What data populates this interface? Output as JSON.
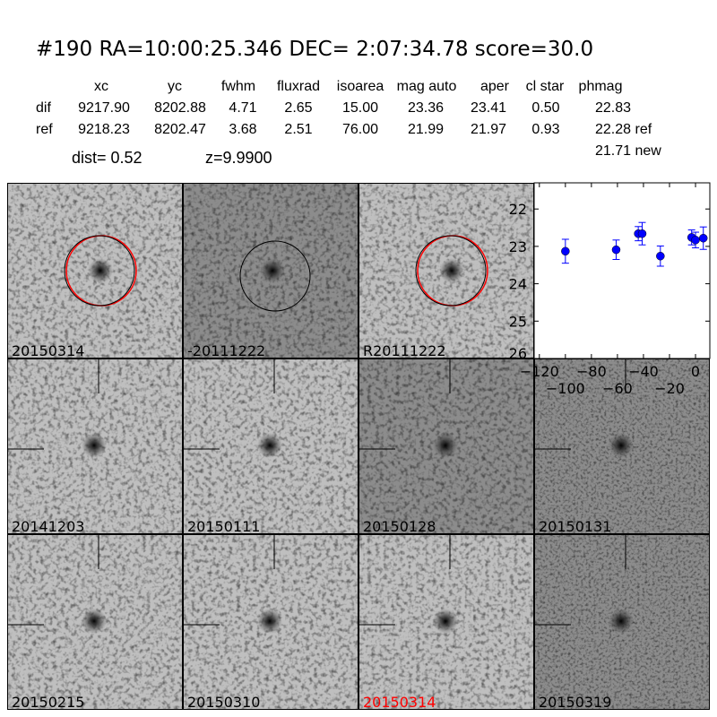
{
  "title": "#190   RA=10:00:25.346 DEC= 2:07:34.78      score=30.0",
  "table": {
    "columns": [
      "xc",
      "yc",
      "fwhm",
      "fluxrad",
      "isoarea",
      "mag auto",
      "aper",
      "cl star",
      "phmag"
    ],
    "rows": [
      {
        "label": "dif",
        "values": [
          "9217.90",
          "8202.88",
          "4.71",
          "2.65",
          "15.00",
          "23.36",
          "23.41",
          "0.50",
          "22.83"
        ]
      },
      {
        "label": "ref",
        "values": [
          "9218.23",
          "8202.47",
          "3.68",
          "2.51",
          "76.00",
          "21.99",
          "21.97",
          "0.93",
          "22.28 ref"
        ]
      }
    ],
    "extra_phmag": "21.71 new",
    "dist": "dist=  0.52",
    "z": "z=9.9900"
  },
  "panels": [
    {
      "label": "20150314",
      "label_color": "#000000",
      "circles": [
        "black",
        "red"
      ]
    },
    {
      "label": "-20111222",
      "label_color": "#000000",
      "circles": [
        "black"
      ]
    },
    {
      "label": "R20111222",
      "label_color": "#000000",
      "circles": [
        "black",
        "red"
      ]
    },
    {
      "label": "20141203",
      "label_color": "#000000",
      "crosshair": true
    },
    {
      "label": "20150111",
      "label_color": "#000000",
      "crosshair": true
    },
    {
      "label": "20150128",
      "label_color": "#000000",
      "crosshair": true
    },
    {
      "label": "20150131",
      "label_color": "#000000",
      "crosshair": true
    },
    {
      "label": "20150215",
      "label_color": "#000000",
      "crosshair": true
    },
    {
      "label": "20150310",
      "label_color": "#000000",
      "crosshair": true
    },
    {
      "label": "20150314",
      "label_color": "#ff0000",
      "crosshair": true
    },
    {
      "label": "20150319",
      "label_color": "#000000",
      "crosshair": true
    }
  ],
  "chart_data": {
    "type": "scatter",
    "title": "",
    "xlabel": "",
    "ylabel": "",
    "xlim": [
      -124,
      11
    ],
    "ylim": [
      26,
      21.3
    ],
    "y_inverted": true,
    "xticks": [
      -120,
      -100,
      -80,
      -60,
      -40,
      -20,
      0
    ],
    "xtick_labels": [
      "−120",
      "−100",
      "−80",
      "−60",
      "−40",
      "−20",
      "0"
    ],
    "yticks": [
      22,
      23,
      24,
      25,
      26
    ],
    "color": "#0000ff",
    "x": [
      -100,
      -61,
      -44,
      -41,
      -27,
      -3,
      0,
      6
    ],
    "y": [
      23.13,
      23.09,
      22.66,
      22.66,
      23.26,
      22.76,
      22.83,
      22.78
    ],
    "yerr": [
      0.32,
      0.26,
      0.19,
      0.3,
      0.27,
      0.2,
      0.21,
      0.3
    ],
    "grid": false
  }
}
